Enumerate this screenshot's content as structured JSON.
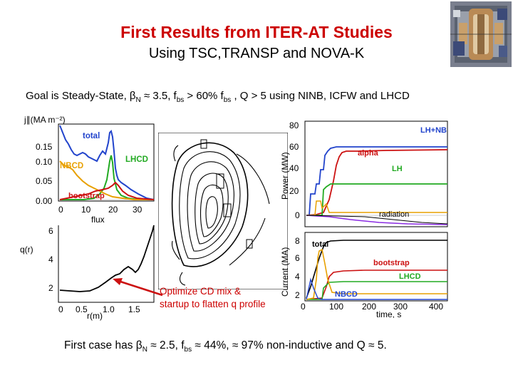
{
  "header": {
    "title": "First Results from ITER-AT Studies",
    "subtitle": "Using TSC,TRANSP and NOVA-K"
  },
  "goal": {
    "prefix": "Goal is Steady-State, ",
    "beta": "β",
    "beta_sub": "N",
    "beta_val": " ≈ 3.5, f",
    "fbs_sub": "bs",
    "fbs_cond": " > 60% f",
    "fbs_sub2": "bs",
    "suffix": " , Q > 5 using NINB, ICFW and LHCD"
  },
  "callout": {
    "line1": "Optimize CD mix &",
    "line2": "startup to flatten q profile"
  },
  "result": {
    "prefix": "First case has ",
    "beta": "β",
    "beta_sub": "N",
    "beta_val": " ≈ 2.5, f",
    "fbs_sub": "bs",
    "suffix": " ≈ 44%, ≈ 97% non-inductive and  Q ≈ 5."
  },
  "colors": {
    "title": "#cc0000",
    "total": "#2244cc",
    "lhcd": "#22aa22",
    "nbcd": "#e8a000",
    "bootstrap": "#cc1111",
    "alpha": "#cc1111",
    "radiation": "#8a2be2"
  },
  "current_density_plot": {
    "ylabel": "j∥(MA m⁻²)",
    "y_ticks": [
      "0.15",
      "0.10",
      "0.05",
      "0.00"
    ],
    "x_ticks": [
      "0",
      "10",
      "20",
      "30"
    ],
    "xlabel": "flux",
    "labels": {
      "total": "total",
      "lhcd": "LHCD",
      "nbcd": "NBCD",
      "bootstrap": "bootstrap"
    }
  },
  "q_profile_plot": {
    "ylabel": "q(r)",
    "y_ticks": [
      "6",
      "4",
      "2"
    ],
    "x_ticks": [
      "0",
      "0.5",
      "1.0",
      "1.5"
    ],
    "xlabel": "r(m)"
  },
  "power_plot": {
    "ylabel": "Power (MW)",
    "y_ticks": [
      "80",
      "60",
      "40",
      "20",
      "0"
    ],
    "labels": {
      "lhnb": "LH+NB",
      "alpha": "alpha",
      "lh": "LH",
      "radiation": "radiation"
    }
  },
  "current_plot": {
    "ylabel": "Current (MA)",
    "y_ticks": [
      "8",
      "6",
      "4",
      "2"
    ],
    "x_ticks": [
      "0",
      "100",
      "200",
      "300",
      "400"
    ],
    "xlabel": "time, s",
    "labels": {
      "total": "total",
      "bootstrap": "bootstrap",
      "lhcd": "LHCD",
      "nbcd": "NBCD"
    }
  }
}
